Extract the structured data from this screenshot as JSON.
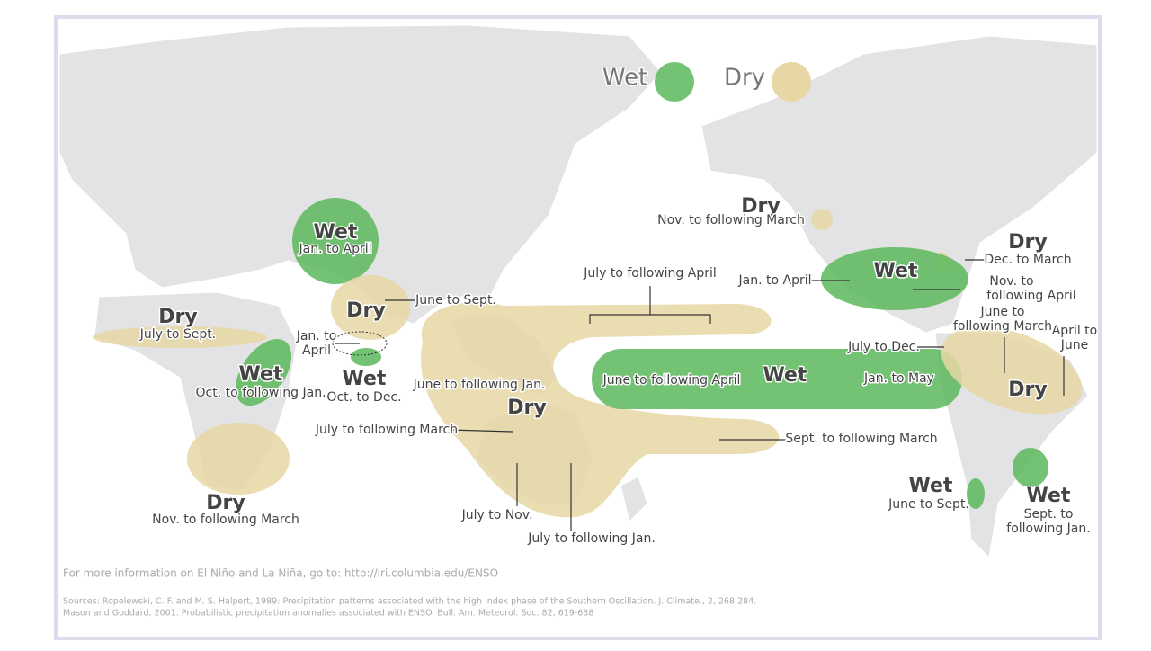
{
  "legend": {
    "wet": "Wet",
    "dry": "Dry"
  },
  "labels": [
    "Dry",
    "Nov. to following March",
    "Dry",
    "Dec. to March",
    "Wet",
    "Jan. to April",
    "Nov. to",
    "following April",
    "June to",
    "following March",
    "April to",
    "June",
    "July to Dec.",
    "Dry",
    "July to following April",
    "Wet",
    "June to following April",
    "Jan. to May",
    "Dry",
    "June to following Jan.",
    "July to following March",
    "Sept. to following March",
    "July to Nov.",
    "July to following Jan.",
    "Wet",
    "Jan. to April",
    "Dry",
    "June to Sept.",
    "Jan. to",
    "April",
    "Wet",
    "Oct. to Dec.",
    "Dry",
    "July to Sept.",
    "Wet",
    "Oct. to following Jan.",
    "Dry",
    "Nov. to following March",
    "Wet",
    "June to Sept.",
    "Wet",
    "Sept. to",
    "following Jan."
  ],
  "footer": {
    "info": "For more information on El Niño and La Niña, go to: http://iri.columbia.edu/ENSO",
    "sources": [
      "Sources:  Ropelewski, C. F. and M. S. Halpert, 1989: Precipitation patterns associated with the high index phase of the Southern Oscillation. J. Climate., 2, 268 284.",
      "Mason and Goddard, 2001. Probabilistic precipitation anomalies associated with ENSO.  Bull. Am. Meteorol. Soc. 82, 619-638"
    ]
  }
}
